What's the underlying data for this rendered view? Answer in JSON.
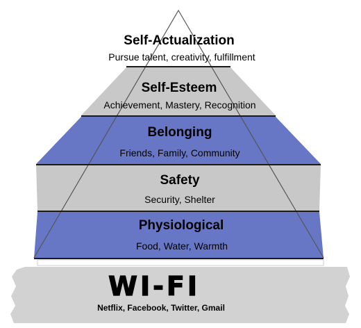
{
  "pyramid": {
    "tiers": [
      {
        "title": "Self-Actualization",
        "subtitle": "Pursue talent, creativity, fulfillment",
        "color": "#ffffff"
      },
      {
        "title": "Self-Esteem",
        "subtitle": "Achievement, Mastery, Recognition",
        "color": "#c8c8c8"
      },
      {
        "title": "Belonging",
        "subtitle": "Friends, Family, Community",
        "color": "#6777c6"
      },
      {
        "title": "Safety",
        "subtitle": "Security, Shelter",
        "color": "#c8c8c8"
      },
      {
        "title": "Physiological",
        "subtitle": "Food, Water, Warmth",
        "color": "#6777c6"
      }
    ],
    "base": {
      "title": "WI-FI",
      "subtitle": "Netflix, Facebook, Twitter, Gmail",
      "color": "#d2d2d2"
    },
    "divider_color": "#1a1a1a"
  }
}
